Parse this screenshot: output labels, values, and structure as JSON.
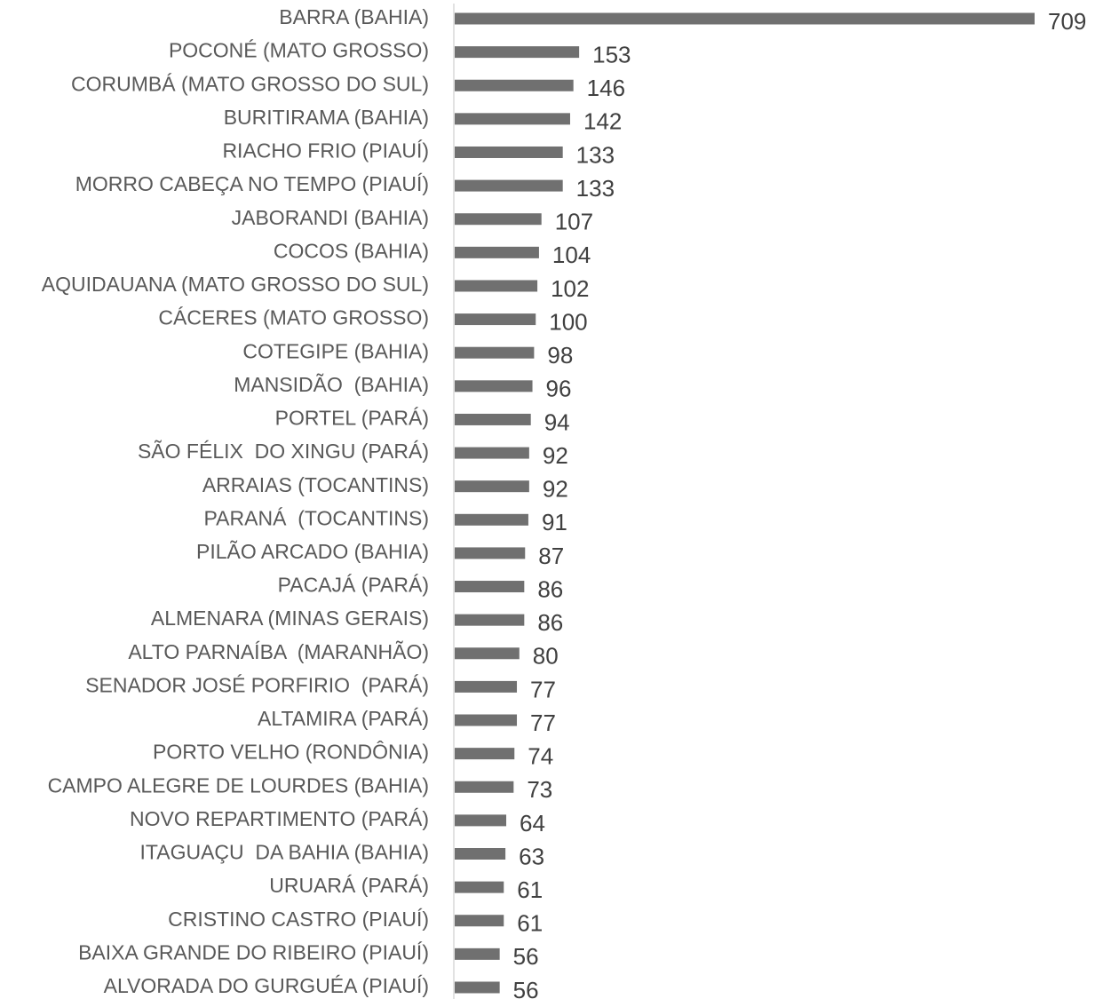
{
  "chart_data": {
    "type": "bar",
    "orientation": "horizontal",
    "color": "#707070",
    "categories": [
      "BARRA (BAHIA)",
      "POCONÉ (MATO GROSSO)",
      "CORUMBÁ (MATO GROSSO DO SUL)",
      "BURITIRAMA (BAHIA)",
      "RIACHO FRIO (PIAUÍ)",
      "MORRO CABEÇA NO TEMPO (PIAUÍ)",
      "JABORANDI (BAHIA)",
      "COCOS (BAHIA)",
      "AQUIDAUANA (MATO GROSSO DO SUL)",
      "CÁCERES (MATO GROSSO)",
      "COTEGIPE (BAHIA)",
      "MANSIDÃO  (BAHIA)",
      "PORTEL (PARÁ)",
      "SÃO FÉLIX  DO XINGU (PARÁ)",
      "ARRAIAS (TOCANTINS)",
      "PARANÁ  (TOCANTINS)",
      "PILÃO ARCADO (BAHIA)",
      "PACAJÁ (PARÁ)",
      "ALMENARA (MINAS GERAIS)",
      "ALTO PARNAÍBA  (MARANHÃO)",
      "SENADOR JOSÉ PORFIRIO  (PARÁ)",
      "ALTAMIRA (PARÁ)",
      "PORTO VELHO (RONDÔNIA)",
      "CAMPO ALEGRE DE LOURDES (BAHIA)",
      "NOVO REPARTIMENTO (PARÁ)",
      "ITAGUAÇU  DA BAHIA (BAHIA)",
      "URUARÁ (PARÁ)",
      "CRISTINO CASTRO (PIAUÍ)",
      "BAIXA GRANDE DO RIBEIRO (PIAUÍ)",
      "ALVORADA DO GURGUÉA (PIAUÍ)"
    ],
    "values": [
      709,
      153,
      146,
      142,
      133,
      133,
      107,
      104,
      102,
      100,
      98,
      96,
      94,
      92,
      92,
      91,
      87,
      86,
      86,
      80,
      77,
      77,
      74,
      73,
      64,
      63,
      61,
      61,
      56,
      56
    ]
  }
}
